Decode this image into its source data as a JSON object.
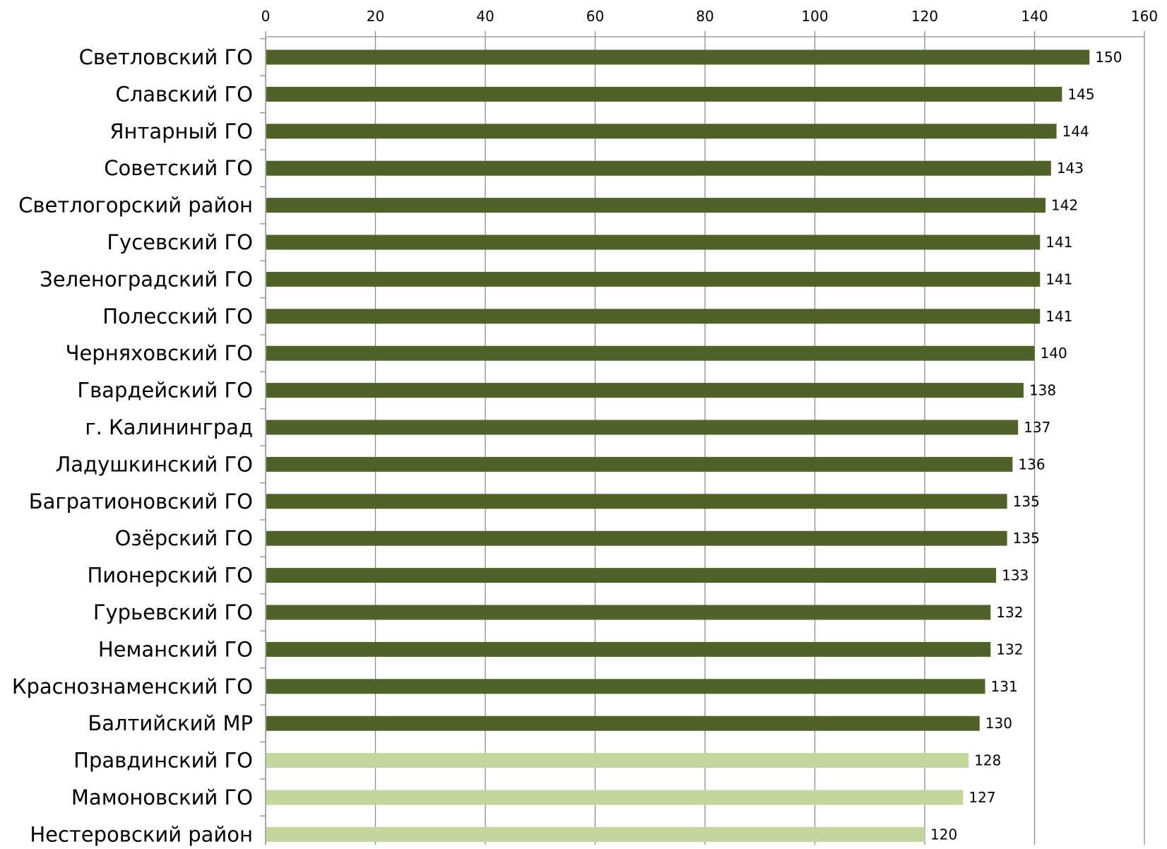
{
  "chart_data": {
    "type": "bar",
    "orientation": "horizontal",
    "title": "",
    "xlabel": "",
    "ylabel": "",
    "xlim": [
      0,
      160
    ],
    "x_ticks": [
      0,
      20,
      40,
      60,
      80,
      100,
      120,
      140,
      160
    ],
    "x_axis_position": "top",
    "grid": true,
    "legend": "none",
    "colors": {
      "primary": "#4f6228",
      "highlight": "#c3d69b",
      "grid": "#8c8c8c"
    },
    "categories": [
      "Светловский ГО",
      "Славский ГО",
      "Янтарный ГО",
      "Советский ГО",
      "Светлогорский район",
      "Гусевский ГО",
      "Зеленоградский ГО",
      "Полесский ГО",
      "Черняховский ГО",
      "Гвардейский ГО",
      "г. Калининград",
      "Ладушкинский ГО",
      "Багратионовский ГО",
      "Озёрский ГО",
      "Пионерский ГО",
      "Гурьевский ГО",
      "Неманский ГО",
      "Краснознаменский ГО",
      "Балтийский МР",
      "Правдинский ГО",
      "Мамоновский ГО",
      "Нестеровский район"
    ],
    "values": [
      150,
      145,
      144,
      143,
      142,
      141,
      141,
      141,
      140,
      138,
      137,
      136,
      135,
      135,
      133,
      132,
      132,
      131,
      130,
      128,
      127,
      120
    ],
    "data_labels": [
      "150",
      "145",
      "144",
      "143",
      "142",
      "141",
      "141",
      "141",
      "140",
      "138",
      "137",
      "136",
      "135",
      "135",
      "133",
      "132",
      "132",
      "131",
      "130",
      "128",
      "127",
      "120"
    ],
    "bar_color_groups": [
      "dark",
      "dark",
      "dark",
      "dark",
      "dark",
      "dark",
      "dark",
      "dark",
      "dark",
      "dark",
      "dark",
      "dark",
      "dark",
      "dark",
      "dark",
      "dark",
      "dark",
      "dark",
      "dark",
      "light",
      "light",
      "light"
    ]
  }
}
